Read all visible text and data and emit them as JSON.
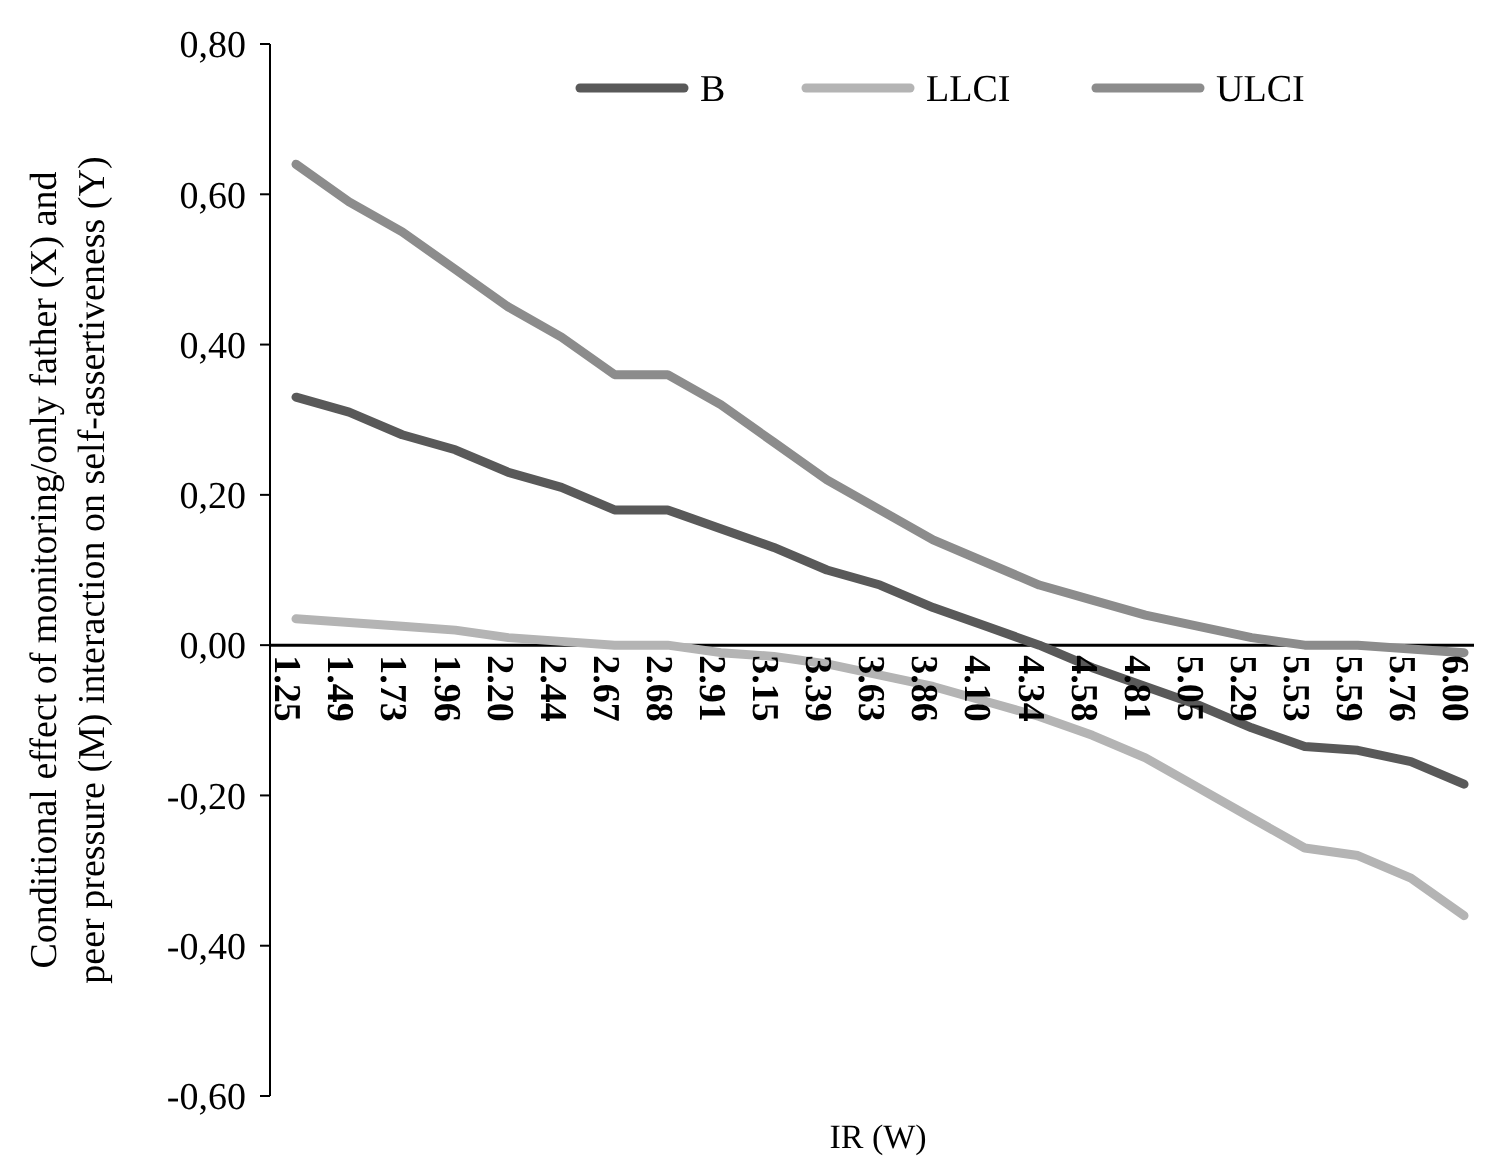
{
  "chart_data": {
    "type": "line",
    "xlabel": "IR (W)",
    "ylabel": "Conditional effect of monitoring/only father (X) and peer pressure (M) interaction on self-assertiveness (Y)",
    "categories": [
      "1.25",
      "1.49",
      "1.73",
      "1.96",
      "2.20",
      "2.44",
      "2.67",
      "2.68",
      "2.91",
      "3.15",
      "3.39",
      "3.63",
      "3.86",
      "4.10",
      "4.34",
      "4.58",
      "4.81",
      "5.05",
      "5.29",
      "5.53",
      "5.59",
      "5.76",
      "6.00"
    ],
    "series": [
      {
        "name": "B",
        "color": "#595959",
        "values": [
          0.33,
          0.31,
          0.28,
          0.26,
          0.23,
          0.21,
          0.18,
          0.18,
          0.155,
          0.13,
          0.1,
          0.08,
          0.05,
          0.025,
          0,
          -0.03,
          -0.055,
          -0.08,
          -0.11,
          -0.135,
          -0.14,
          -0.155,
          -0.185
        ]
      },
      {
        "name": "LLCI",
        "color": "#b4b4b4",
        "values": [
          0.035,
          0.03,
          0.025,
          0.02,
          0.01,
          0.005,
          0,
          0,
          -0.01,
          -0.015,
          -0.025,
          -0.04,
          -0.055,
          -0.075,
          -0.095,
          -0.12,
          -0.15,
          -0.19,
          -0.23,
          -0.27,
          -0.28,
          -0.31,
          -0.36
        ]
      },
      {
        "name": "ULCI",
        "color": "#8c8c8c",
        "values": [
          0.64,
          0.59,
          0.55,
          0.5,
          0.45,
          0.41,
          0.36,
          0.36,
          0.32,
          0.27,
          0.22,
          0.18,
          0.14,
          0.11,
          0.08,
          0.06,
          0.04,
          0.025,
          0.01,
          0,
          0,
          -0.005,
          -0.01
        ]
      }
    ],
    "ylim": [
      -0.6,
      0.8
    ],
    "yticks": [
      {
        "value": -0.6,
        "label": "-0,60"
      },
      {
        "value": -0.4,
        "label": "-0,40"
      },
      {
        "value": -0.2,
        "label": "-0,20"
      },
      {
        "value": 0,
        "label": "0,00"
      },
      {
        "value": 0.2,
        "label": "0,20"
      },
      {
        "value": 0.4,
        "label": "0,40"
      },
      {
        "value": 0.6,
        "label": "0,60"
      },
      {
        "value": 0.8,
        "label": "0,80"
      }
    ],
    "legend": "top",
    "grid": false,
    "marker": "none",
    "line_style": "solid"
  }
}
